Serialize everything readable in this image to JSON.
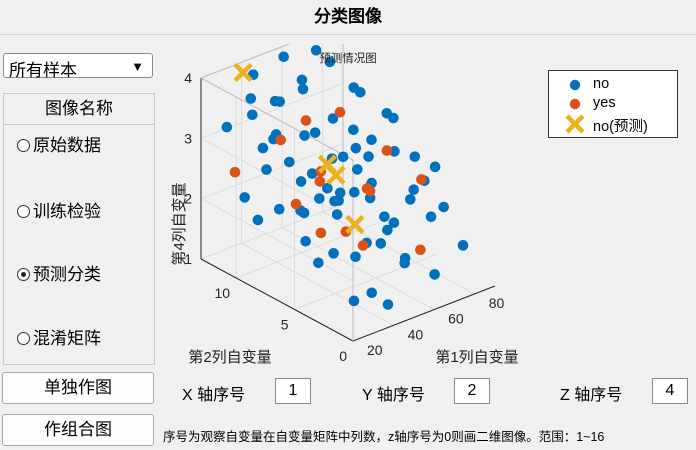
{
  "window": {
    "title": "分类图像"
  },
  "sample_select": {
    "value": "所有样本"
  },
  "image_panel": {
    "title": "图像名称",
    "options": [
      {
        "label": "原始数据",
        "selected": false
      },
      {
        "label": "训练检验",
        "selected": false
      },
      {
        "label": "预测分类",
        "selected": true
      },
      {
        "label": "混淆矩阵",
        "selected": false
      }
    ]
  },
  "buttons": {
    "single_plot": "单独作图",
    "combined_plot": "作组合图"
  },
  "axis_inputs": {
    "x_label": "X 轴序号",
    "x_value": "1",
    "y_label": "Y 轴序号",
    "y_value": "2",
    "z_label": "Z 轴序号",
    "z_value": "4"
  },
  "note": "序号为观察自变量在自变量矩阵中列数，z轴序号为0则画二维图像。范围：1~16",
  "colors": {
    "no": "#0072bd",
    "yes": "#d95319",
    "predicted": "#edb120"
  },
  "chart_data": {
    "type": "scatter",
    "projection": "3d",
    "title": "预测情况图",
    "xlabel": "第1列自变量",
    "ylabel": "第2列自变量",
    "zlabel": "第4列自变量",
    "xlim": [
      20,
      90
    ],
    "ylim": [
      0,
      13
    ],
    "zlim": [
      1,
      4
    ],
    "xticks": [
      "20",
      "40",
      "60",
      "80"
    ],
    "yticks": [
      "0",
      "5",
      "10"
    ],
    "zticks": [
      "1",
      "2",
      "3",
      "4"
    ],
    "grid": true,
    "legend_position": "top-right",
    "legend": [
      "no",
      "yes",
      "no(预测)"
    ],
    "series": [
      {
        "name": "no",
        "marker": "circle",
        "points": [
          [
            30,
            8,
            4
          ],
          [
            45,
            11,
            3.5
          ],
          [
            58,
            5,
            2.6
          ],
          [
            70,
            2,
            2.2
          ],
          [
            26,
            4,
            1.8
          ],
          [
            40,
            12,
            3.9
          ],
          [
            62,
            9,
            3.2
          ],
          [
            75,
            6,
            2.8
          ],
          [
            35,
            1,
            1.5
          ],
          [
            50,
            7,
            2.9
          ],
          [
            82,
            3,
            2.1
          ],
          [
            28,
            10,
            3.6
          ],
          [
            55,
            12,
            4
          ],
          [
            66,
            1,
            1.4
          ],
          [
            44,
            3,
            2
          ],
          [
            38,
            6,
            2.5
          ],
          [
            72,
            11,
            3.8
          ],
          [
            24,
            7,
            2.4
          ],
          [
            60,
            4,
            1.9
          ],
          [
            48,
            9,
            3.1
          ],
          [
            86,
            8,
            3
          ],
          [
            32,
            2,
            1.3
          ],
          [
            53,
            10,
            3.7
          ],
          [
            68,
            7,
            2.7
          ],
          [
            41,
            5,
            2.3
          ],
          [
            78,
            10,
            3.4
          ],
          [
            27,
            12,
            3.2
          ],
          [
            57,
            2,
            1.6
          ],
          [
            46,
            8,
            2.6
          ],
          [
            64,
            12,
            3.5
          ],
          [
            34,
            9,
            3.3
          ],
          [
            80,
            1,
            1.7
          ],
          [
            51,
            3,
            1.9
          ],
          [
            39,
            11,
            2.8
          ],
          [
            73,
            4,
            2.4
          ],
          [
            29,
            6,
            2.9
          ],
          [
            61,
            7,
            2.2
          ],
          [
            43,
            1,
            1.2
          ],
          [
            67,
            9,
            2.5
          ],
          [
            36,
            4,
            2.7
          ],
          [
            84,
            5,
            2.3
          ],
          [
            25,
            9,
            2
          ],
          [
            56,
            6,
            3.1
          ],
          [
            71,
            12,
            3.9
          ],
          [
            47,
            2,
            2.5
          ],
          [
            33,
            11,
            3.7
          ],
          [
            63,
            3,
            1.5
          ],
          [
            52,
            11,
            2.4
          ],
          [
            77,
            7,
            3.3
          ],
          [
            42,
            8,
            2
          ],
          [
            31,
            3,
            3
          ],
          [
            69,
            5,
            1.8
          ],
          [
            54,
            1,
            2.8
          ],
          [
            87,
            11,
            3.1
          ],
          [
            37,
            7,
            1.7
          ],
          [
            59,
            10,
            2.9
          ],
          [
            23,
            5,
            2.6
          ],
          [
            74,
            9,
            2.2
          ],
          [
            49,
            5,
            3.6
          ],
          [
            65,
            10,
            1.9
          ],
          [
            40,
            2,
            2.9
          ],
          [
            81,
            9,
            2.6
          ],
          [
            30,
            11,
            2.1
          ],
          [
            57,
            8,
            2
          ],
          [
            72,
            2,
            3
          ],
          [
            45,
            6,
            1.5
          ],
          [
            35,
            10,
            2.6
          ],
          [
            62,
            2,
            3.3
          ],
          [
            27,
            1,
            2.2
          ],
          [
            50,
            12,
            2.7
          ]
        ]
      },
      {
        "name": "yes",
        "marker": "circle",
        "points": [
          [
            33,
            5,
            2.1
          ],
          [
            56,
            9,
            2.4
          ],
          [
            71,
            3,
            2.7
          ],
          [
            42,
            10,
            3
          ],
          [
            63,
            6,
            2.3
          ],
          [
            28,
            2,
            2.5
          ],
          [
            48,
            4,
            1.8
          ],
          [
            77,
            11,
            2.9
          ],
          [
            38,
            8,
            2.2
          ],
          [
            54,
            3,
            3.4
          ],
          [
            66,
            12,
            2.8
          ],
          [
            44,
            7,
            2.6
          ],
          [
            59,
            1,
            1.9
          ],
          [
            31,
            12,
            2.4
          ],
          [
            73,
            8,
            2
          ]
        ]
      },
      {
        "name": "no(预测)",
        "marker": "x",
        "points": [
          [
            35,
            12,
            4
          ],
          [
            52,
            7,
            2.6
          ],
          [
            65,
            10,
            2.3
          ],
          [
            44,
            4,
            2.2
          ]
        ]
      }
    ]
  }
}
